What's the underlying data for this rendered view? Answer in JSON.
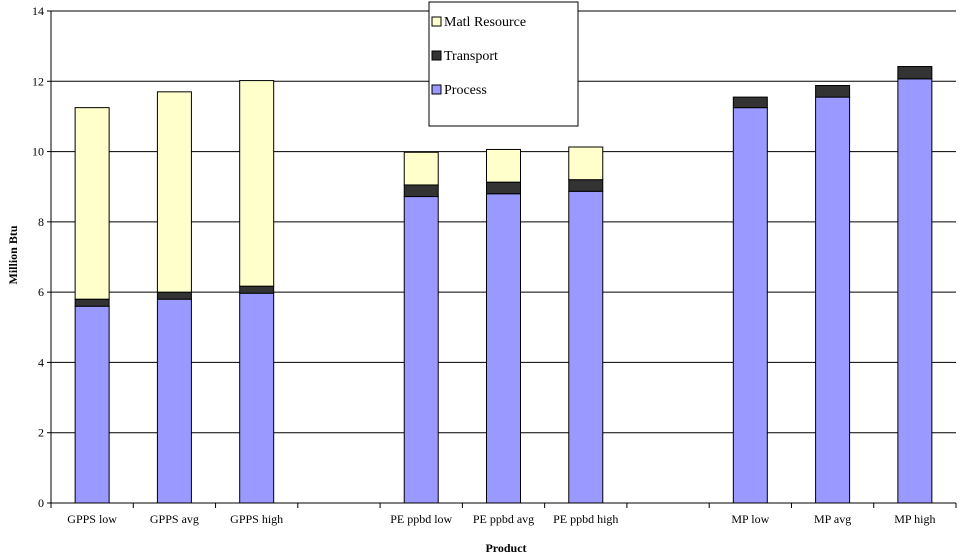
{
  "chart_data": {
    "type": "bar",
    "stacked": true,
    "categories": [
      "GPPS low",
      "GPPS avg",
      "GPPS high",
      "",
      "PE ppbd low",
      "PE ppbd avg",
      "PE ppbd high",
      "",
      "MP low",
      "MP avg",
      "MP high"
    ],
    "series": [
      {
        "name": "Process",
        "color": "#9999ff",
        "values": [
          5.6,
          5.8,
          5.97,
          0,
          8.72,
          8.8,
          8.87,
          0,
          11.25,
          11.55,
          12.07
        ]
      },
      {
        "name": "Transport",
        "color": "#333333",
        "values": [
          0.2,
          0.2,
          0.2,
          0,
          0.33,
          0.33,
          0.33,
          0,
          0.3,
          0.33,
          0.35
        ]
      },
      {
        "name": "Matl Resource",
        "color": "#ffffcc",
        "values": [
          5.45,
          5.7,
          5.85,
          0,
          0.93,
          0.93,
          0.93,
          0,
          0,
          0,
          0
        ]
      }
    ],
    "xlabel": "Product",
    "ylabel": "Million Btu",
    "ylim": [
      0,
      14
    ],
    "yticks": [
      0,
      2,
      4,
      6,
      8,
      10,
      12,
      14
    ],
    "grid": true,
    "legend": {
      "placement": "top-center",
      "order": [
        "Matl Resource",
        "Transport",
        "Process"
      ]
    }
  }
}
